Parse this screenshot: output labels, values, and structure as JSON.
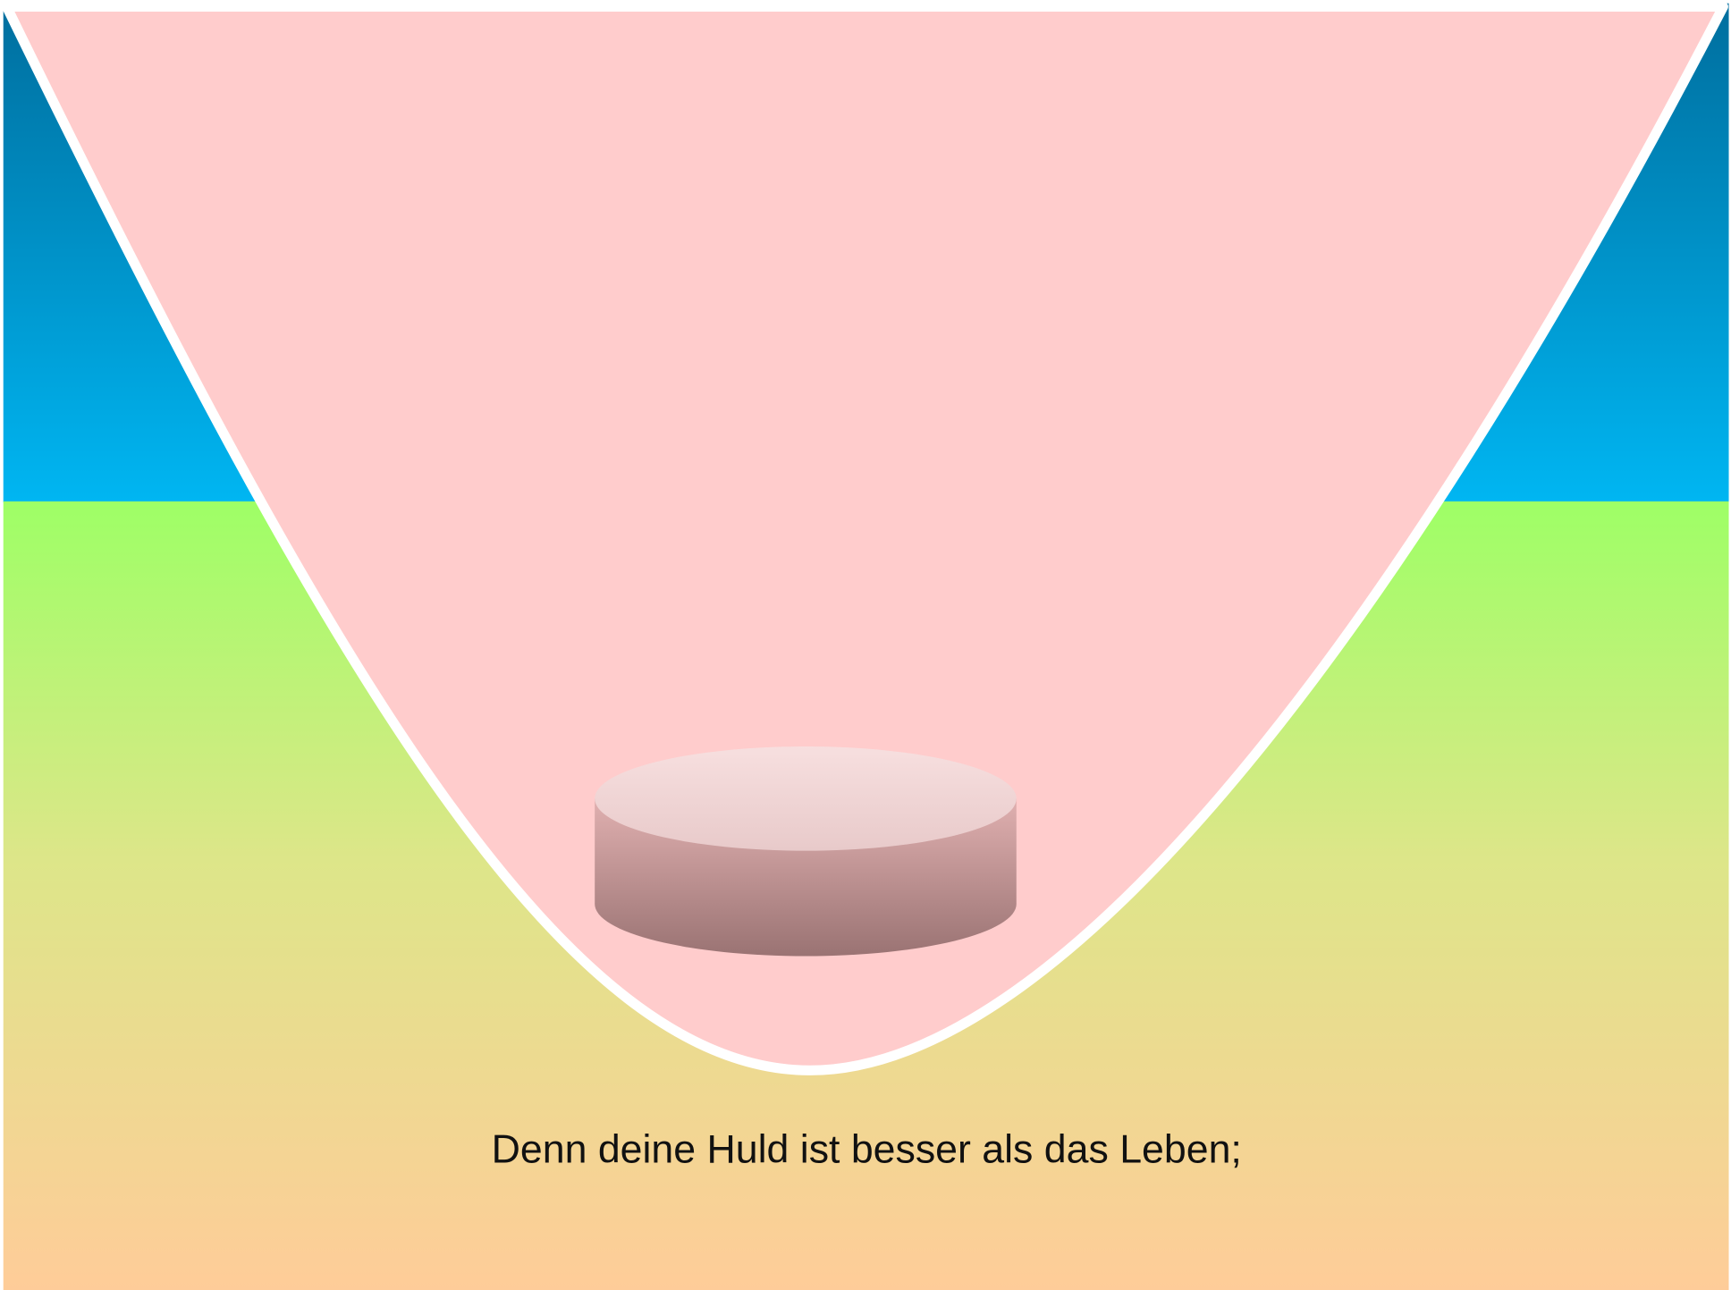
{
  "caption": "Denn deine Huld ist besser als das Leben;"
}
